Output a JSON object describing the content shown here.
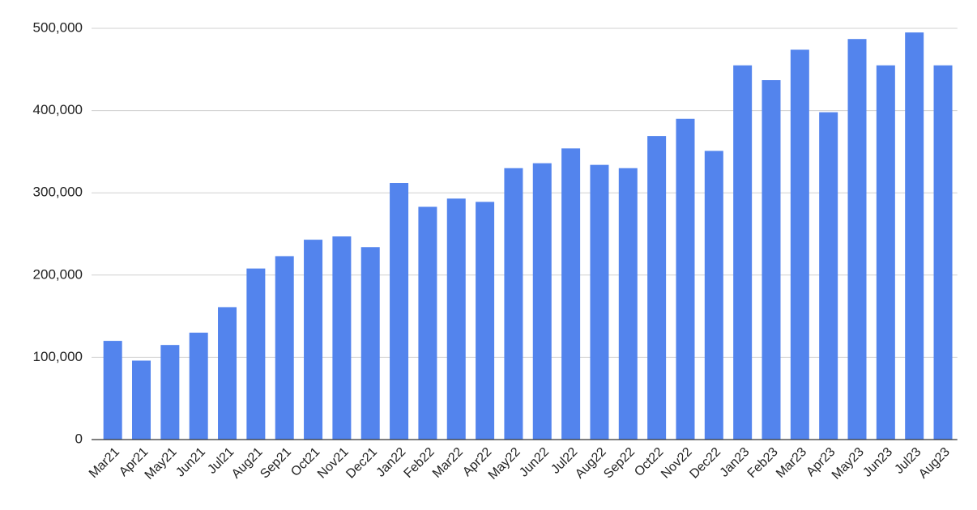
{
  "chart_data": {
    "type": "bar",
    "categories": [
      "Mar21",
      "Apr21",
      "May21",
      "Jun21",
      "Jul21",
      "Aug21",
      "Sep21",
      "Oct21",
      "Nov21",
      "Dec21",
      "Jan22",
      "Feb22",
      "Mar22",
      "Apr22",
      "May22",
      "Jun22",
      "Jul22",
      "Aug22",
      "Sep22",
      "Oct22",
      "Nov22",
      "Dec22",
      "Jan23",
      "Feb23",
      "Mar23",
      "Apr23",
      "May23",
      "Jun23",
      "Jul23",
      "Aug23"
    ],
    "values": [
      120000,
      96000,
      115000,
      130000,
      161000,
      208000,
      223000,
      243000,
      247000,
      234000,
      312000,
      283000,
      293000,
      289000,
      330000,
      336000,
      354000,
      334000,
      330000,
      369000,
      390000,
      351000,
      455000,
      437000,
      474000,
      398000,
      487000,
      455000,
      495000,
      455000
    ],
    "color": "#5384ed",
    "ylim": [
      0,
      500000
    ],
    "yticks": [
      0,
      {
        "value": 100000,
        "label": "100,000"
      },
      {
        "value": 200000,
        "label": "200,000"
      },
      {
        "value": 300000,
        "label": "300,000"
      },
      {
        "value": 400000,
        "label": "400,000"
      },
      {
        "value": 500000,
        "label": "500,000"
      }
    ],
    "grid": true
  }
}
